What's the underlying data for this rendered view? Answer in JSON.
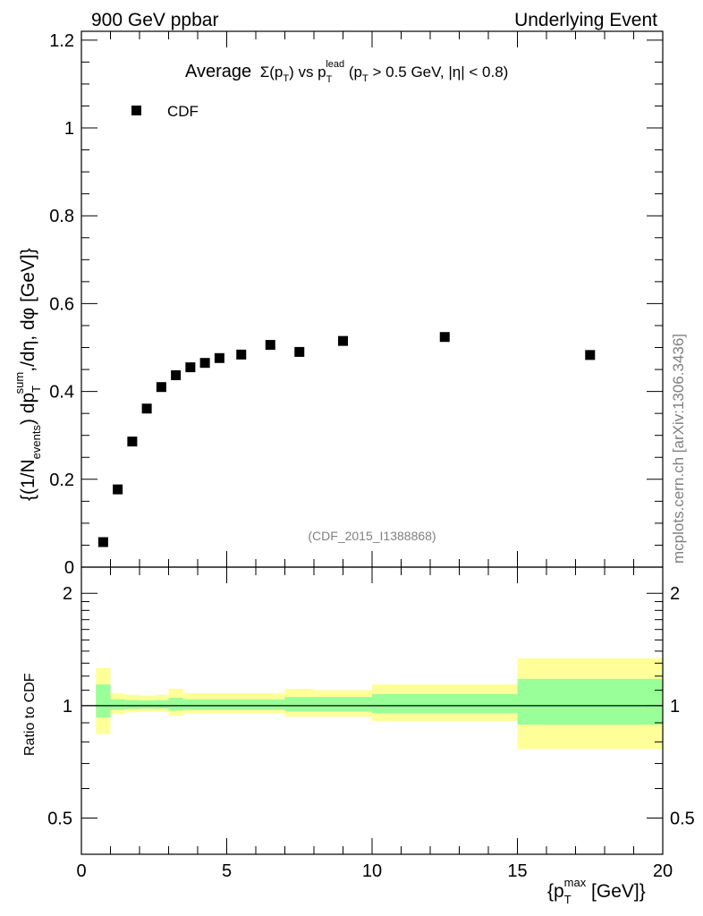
{
  "header": {
    "left": "900 GeV ppbar",
    "right": "Underlying Event"
  },
  "side_label": "mcplots.cern.ch [arXiv:1306.3436]",
  "chart_data": [
    {
      "type": "scatter",
      "title_parts": {
        "average": "Average",
        "sigma": "Σ(p",
        "t_sub": "T",
        "vs": ") vs p",
        "lead": "lead",
        "cut_open": " (p",
        "cut_rest": " > 0.5 GeV, |η| < 0.8)"
      },
      "ylabel": "{(1/N_events) dp_T^sum/dη, dφ [GeV]}",
      "ylabel_parts": {
        "open": "{(1/N",
        "events": "events",
        "mid": ") dp",
        "sum": "sum",
        "tail": ",/dη, dφ [GeV]}"
      },
      "legend": {
        "marker": "square",
        "label": "CDF",
        "position": "top-left"
      },
      "watermark": "(CDF_2015_I1388868)",
      "xlim": [
        0,
        20
      ],
      "ylim": [
        0,
        1.22
      ],
      "y_ticks": [
        0,
        0.2,
        0.4,
        0.6,
        0.8,
        1,
        1.2
      ],
      "y_tick_labels": [
        "0",
        "0.2",
        "0.4",
        "0.6",
        "0.8",
        "1",
        "1.2"
      ],
      "series": [
        {
          "name": "CDF",
          "x": [
            0.75,
            1.25,
            1.75,
            2.25,
            2.75,
            3.25,
            3.75,
            4.25,
            4.75,
            5.5,
            6.5,
            7.5,
            9.0,
            12.5,
            17.5
          ],
          "y": [
            0.057,
            0.177,
            0.286,
            0.361,
            0.41,
            0.437,
            0.455,
            0.465,
            0.476,
            0.484,
            0.506,
            0.49,
            0.515,
            0.524,
            0.483
          ]
        }
      ]
    },
    {
      "type": "area",
      "ylabel": "Ratio to CDF",
      "xlabel_parts": {
        "open": "{p",
        "max": "max",
        "tail": " [GeV]}"
      },
      "xlim": [
        0,
        20
      ],
      "ylim": [
        0.4,
        2.35
      ],
      "x_ticks": [
        0,
        5,
        10,
        15,
        20
      ],
      "x_tick_labels": [
        "0",
        "5",
        "10",
        "15",
        "20"
      ],
      "y_ticks": [
        0.5,
        1,
        2
      ],
      "y_tick_labels": [
        "0.5",
        "1",
        "2"
      ],
      "reference_line": 1,
      "bands": {
        "yellow_color": "#ffff99",
        "green_color": "#99ff99",
        "bins": [
          {
            "x0": 0.5,
            "x1": 1.0,
            "yl": 0.84,
            "yh": 1.26,
            "gl": 0.93,
            "gh": 1.14
          },
          {
            "x0": 1.0,
            "x1": 1.5,
            "yl": 0.95,
            "yh": 1.08,
            "gl": 0.975,
            "gh": 1.04
          },
          {
            "x0": 1.5,
            "x1": 2.0,
            "yl": 0.96,
            "yh": 1.07,
            "gl": 0.98,
            "gh": 1.035
          },
          {
            "x0": 2.0,
            "x1": 2.5,
            "yl": 0.965,
            "yh": 1.065,
            "gl": 0.983,
            "gh": 1.033
          },
          {
            "x0": 2.5,
            "x1": 3.0,
            "yl": 0.963,
            "yh": 1.07,
            "gl": 0.982,
            "gh": 1.035
          },
          {
            "x0": 3.0,
            "x1": 3.5,
            "yl": 0.94,
            "yh": 1.11,
            "gl": 0.97,
            "gh": 1.05
          },
          {
            "x0": 3.5,
            "x1": 4.0,
            "yl": 0.955,
            "yh": 1.08,
            "gl": 0.975,
            "gh": 1.04
          },
          {
            "x0": 4.0,
            "x1": 5.0,
            "yl": 0.955,
            "yh": 1.08,
            "gl": 0.975,
            "gh": 1.04
          },
          {
            "x0": 5.0,
            "x1": 6.0,
            "yl": 0.955,
            "yh": 1.08,
            "gl": 0.975,
            "gh": 1.04
          },
          {
            "x0": 6.0,
            "x1": 7.0,
            "yl": 0.955,
            "yh": 1.08,
            "gl": 0.975,
            "gh": 1.04
          },
          {
            "x0": 7.0,
            "x1": 8.0,
            "yl": 0.935,
            "yh": 1.11,
            "gl": 0.965,
            "gh": 1.055
          },
          {
            "x0": 8.0,
            "x1": 10.0,
            "yl": 0.935,
            "yh": 1.1,
            "gl": 0.965,
            "gh": 1.055
          },
          {
            "x0": 10.0,
            "x1": 15.0,
            "yl": 0.91,
            "yh": 1.14,
            "gl": 0.955,
            "gh": 1.075
          },
          {
            "x0": 15.0,
            "x1": 20.0,
            "yl": 0.765,
            "yh": 1.34,
            "gl": 0.89,
            "gh": 1.18
          }
        ]
      }
    }
  ]
}
